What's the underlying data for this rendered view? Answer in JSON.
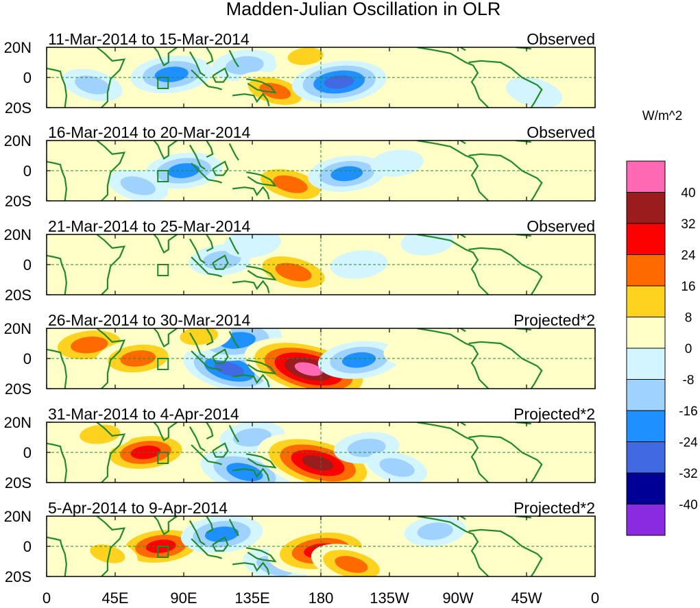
{
  "chart_data": {
    "type": "heatmap",
    "title": "Madden-Julian Oscillation in OLR",
    "units": "W/m^2",
    "y_tick_labels": [
      "20N",
      "0",
      "20S"
    ],
    "x_tick_labels": [
      "0",
      "45E",
      "90E",
      "135E",
      "180",
      "135W",
      "90W",
      "45W",
      "0"
    ],
    "lon_range": [
      0,
      360
    ],
    "lat_range": [
      -20,
      20
    ],
    "colorbar": {
      "tick_labels": [
        "40",
        "32",
        "24",
        "16",
        "8",
        "0",
        "-8",
        "-16",
        "-24",
        "-32",
        "-40"
      ],
      "colors": [
        "#ff69b4",
        "#9b1c1c",
        "#ff0000",
        "#ff6a00",
        "#ffd21f",
        "#ffffc8",
        "#d2f5ff",
        "#a0d2ff",
        "#1e90ff",
        "#4169e1",
        "#000096",
        "#8a2be2"
      ]
    },
    "panels": [
      {
        "date_range": "11-Mar-2014 to 15-Mar-2014",
        "type_label": "Observed",
        "anomalies": [
          {
            "lon": 82,
            "lat": 2,
            "value": -20
          },
          {
            "lon": 130,
            "lat": 8,
            "value": -12
          },
          {
            "lon": 150,
            "lat": -9,
            "value": 18
          },
          {
            "lon": 170,
            "lat": 14,
            "value": 10
          },
          {
            "lon": 192,
            "lat": -3,
            "value": -26
          },
          {
            "lon": 30,
            "lat": -5,
            "value": -10
          },
          {
            "lon": 250,
            "lat": 0,
            "value": 5
          },
          {
            "lon": 320,
            "lat": -10,
            "value": -8
          }
        ]
      },
      {
        "date_range": "16-Mar-2014 to 20-Mar-2014",
        "type_label": "Observed",
        "anomalies": [
          {
            "lon": 90,
            "lat": 0,
            "value": -18
          },
          {
            "lon": 160,
            "lat": -9,
            "value": 22
          },
          {
            "lon": 135,
            "lat": 13,
            "value": 8
          },
          {
            "lon": 197,
            "lat": -2,
            "value": -18
          },
          {
            "lon": 15,
            "lat": 6,
            "value": 8
          },
          {
            "lon": 60,
            "lat": -10,
            "value": -10
          },
          {
            "lon": 230,
            "lat": 5,
            "value": -6
          }
        ]
      },
      {
        "date_range": "21-Mar-2014 to 25-Mar-2014",
        "type_label": "Observed",
        "anomalies": [
          {
            "lon": 115,
            "lat": 3,
            "value": -12
          },
          {
            "lon": 162,
            "lat": -5,
            "value": 24
          },
          {
            "lon": 135,
            "lat": 14,
            "value": -8
          },
          {
            "lon": 20,
            "lat": 12,
            "value": 6
          },
          {
            "lon": 60,
            "lat": -3,
            "value": 6
          },
          {
            "lon": 205,
            "lat": 0,
            "value": -8
          },
          {
            "lon": 250,
            "lat": 15,
            "value": -6
          }
        ]
      },
      {
        "date_range": "26-Mar-2014 to 30-Mar-2014",
        "type_label": "Projected*2",
        "anomalies": [
          {
            "lon": 28,
            "lat": 9,
            "value": 24
          },
          {
            "lon": 60,
            "lat": 0,
            "value": 22
          },
          {
            "lon": 120,
            "lat": -7,
            "value": -26
          },
          {
            "lon": 125,
            "lat": 12,
            "value": -24
          },
          {
            "lon": 172,
            "lat": -7,
            "value": 44
          },
          {
            "lon": 205,
            "lat": -1,
            "value": -20
          },
          {
            "lon": 240,
            "lat": 5,
            "value": 8
          },
          {
            "lon": 100,
            "lat": 15,
            "value": 12
          }
        ]
      },
      {
        "date_range": "31-Mar-2014 to 4-Apr-2014",
        "type_label": "Projected*2",
        "anomalies": [
          {
            "lon": 65,
            "lat": 0,
            "value": 26
          },
          {
            "lon": 35,
            "lat": 12,
            "value": 14
          },
          {
            "lon": 130,
            "lat": -13,
            "value": -24
          },
          {
            "lon": 135,
            "lat": 10,
            "value": -12
          },
          {
            "lon": 178,
            "lat": -7,
            "value": 40
          },
          {
            "lon": 210,
            "lat": 3,
            "value": -12
          },
          {
            "lon": 230,
            "lat": -10,
            "value": -10
          },
          {
            "lon": 300,
            "lat": -5,
            "value": 6
          }
        ]
      },
      {
        "date_range": "5-Apr-2014 to 9-Apr-2014",
        "type_label": "Projected*2",
        "anomalies": [
          {
            "lon": 75,
            "lat": 0,
            "value": 26
          },
          {
            "lon": 40,
            "lat": -5,
            "value": 10
          },
          {
            "lon": 115,
            "lat": 8,
            "value": -20
          },
          {
            "lon": 150,
            "lat": -13,
            "value": -12
          },
          {
            "lon": 180,
            "lat": -3,
            "value": 32
          },
          {
            "lon": 200,
            "lat": -12,
            "value": 20
          },
          {
            "lon": 255,
            "lat": 10,
            "value": -10
          },
          {
            "lon": 300,
            "lat": -8,
            "value": 6
          }
        ]
      }
    ]
  }
}
